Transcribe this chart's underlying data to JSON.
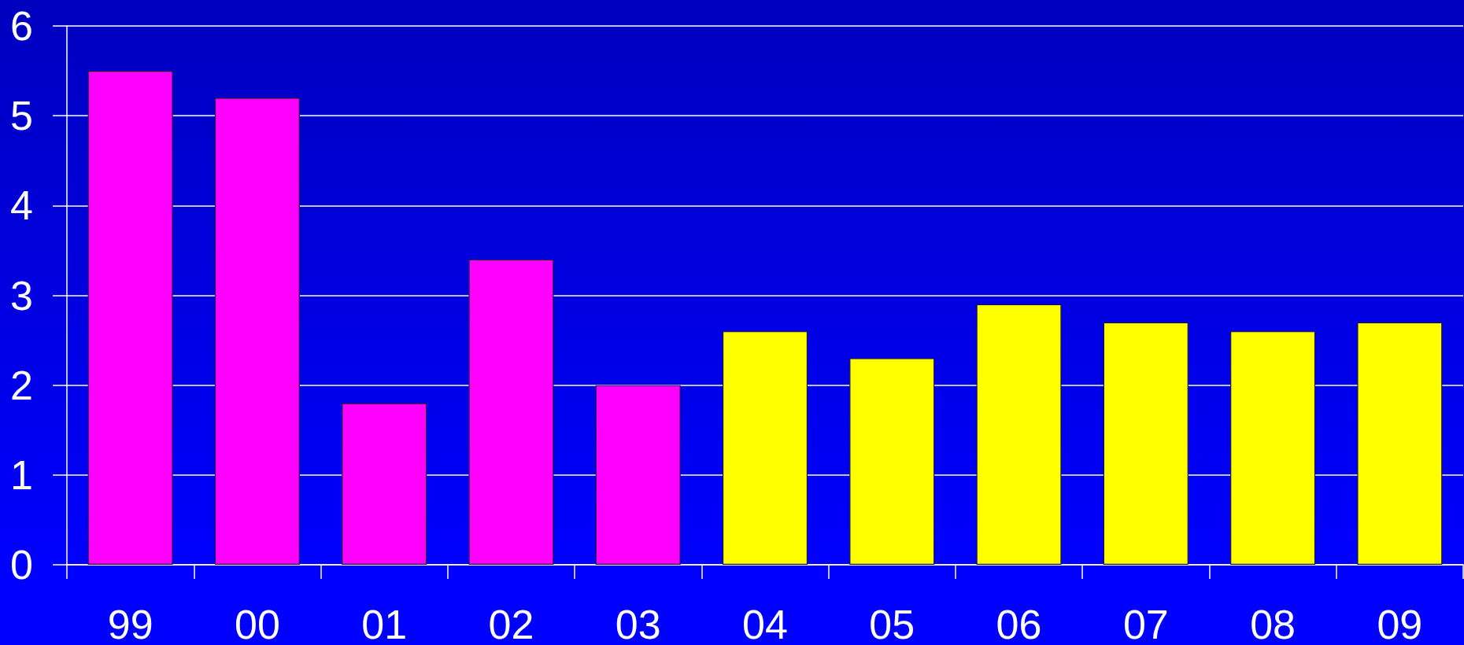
{
  "chart_data": {
    "type": "bar",
    "categories": [
      "99",
      "00",
      "01",
      "02",
      "03",
      "04",
      "05",
      "06",
      "07",
      "08",
      "09"
    ],
    "values": [
      5.5,
      5.2,
      1.8,
      3.4,
      2.0,
      2.6,
      2.3,
      2.9,
      2.7,
      2.6,
      2.7
    ],
    "colors": [
      "#ff00ff",
      "#ff00ff",
      "#ff00ff",
      "#ff00ff",
      "#ff00ff",
      "#ffff00",
      "#ffff00",
      "#ffff00",
      "#ffff00",
      "#ffff00",
      "#ffff00"
    ],
    "ylim": [
      0,
      6
    ],
    "yticks": [
      0,
      1,
      2,
      3,
      4,
      5,
      6
    ],
    "grid": "y"
  }
}
